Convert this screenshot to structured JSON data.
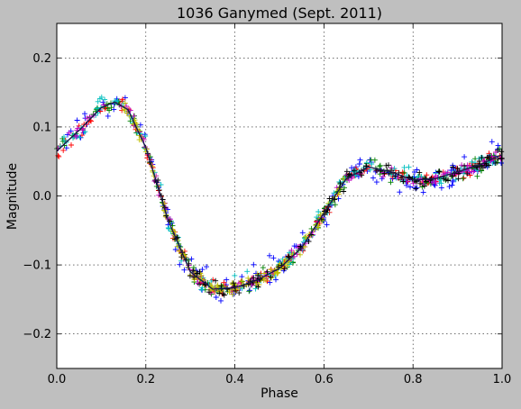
{
  "chart_data": {
    "type": "scatter",
    "title": "1036 Ganymed (Sept. 2011)",
    "xlabel": "Phase",
    "ylabel": "Magnitude",
    "xlim": [
      0.0,
      1.0
    ],
    "ylim": [
      -0.25,
      0.25
    ],
    "y_inverted": false,
    "grid": true,
    "xticks": [
      "0.0",
      "0.2",
      "0.4",
      "0.6",
      "0.8",
      "1.0"
    ],
    "xtick_values": [
      0.0,
      0.2,
      0.4,
      0.6,
      0.8,
      1.0
    ],
    "yticks": [
      "0.2",
      "0.1",
      "0.0",
      "−0.1",
      "−0.2"
    ],
    "ytick_values": [
      0.2,
      0.1,
      0.0,
      -0.1,
      -0.2
    ],
    "marker": "+",
    "background_color": "#bfbfbf",
    "axes_color": "#ffffff",
    "fit_curve": {
      "name": "",
      "color": "#1a1a4d",
      "x": [
        0.0,
        0.05,
        0.1,
        0.13,
        0.16,
        0.2,
        0.25,
        0.3,
        0.35,
        0.4,
        0.45,
        0.5,
        0.55,
        0.6,
        0.65,
        0.7,
        0.75,
        0.8,
        0.85,
        0.9,
        0.95,
        1.0
      ],
      "y": [
        0.065,
        0.095,
        0.128,
        0.136,
        0.125,
        0.07,
        -0.035,
        -0.11,
        -0.135,
        -0.133,
        -0.122,
        -0.105,
        -0.075,
        -0.025,
        0.025,
        0.042,
        0.035,
        0.023,
        0.025,
        0.035,
        0.045,
        0.06
      ]
    },
    "series": [
      {
        "color": "#0000ff",
        "x_range": [
          0.02,
          1.0
        ],
        "count": 150,
        "spread": 0.022
      },
      {
        "color": "#ff0000",
        "x_range": [
          0.0,
          1.0
        ],
        "count": 150,
        "spread": 0.01
      },
      {
        "color": "#008000",
        "x_range": [
          0.0,
          1.0
        ],
        "count": 150,
        "spread": 0.012
      },
      {
        "color": "#00bfbf",
        "x_range": [
          0.0,
          1.0
        ],
        "count": 150,
        "spread": 0.014
      },
      {
        "color": "#bf00bf",
        "x_range": [
          0.0,
          1.0
        ],
        "count": 150,
        "spread": 0.008
      },
      {
        "color": "#bfbf00",
        "x_range": [
          0.15,
          0.65
        ],
        "count": 150,
        "spread": 0.008
      },
      {
        "color": "#000000",
        "x_range": [
          0.2,
          1.0
        ],
        "count": 150,
        "spread": 0.012
      }
    ]
  }
}
